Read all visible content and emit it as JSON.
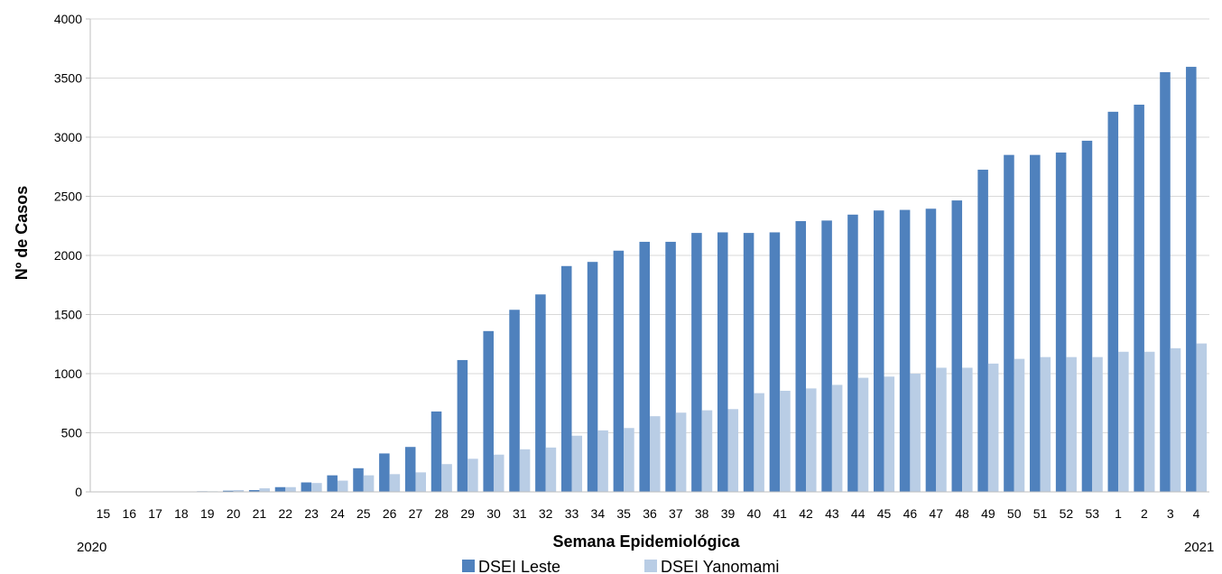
{
  "chart_data": {
    "type": "bar",
    "title": "",
    "xlabel": "Semana Epidemiológica",
    "ylabel": "Nº de Casos",
    "ylim": [
      0,
      4000
    ],
    "yticks": [
      0,
      500,
      1000,
      1500,
      2000,
      2500,
      3000,
      3500,
      4000
    ],
    "grid": true,
    "legend_position": "bottom",
    "year_labels": {
      "start": "2020",
      "end": "2021"
    },
    "categories": [
      "15",
      "16",
      "17",
      "18",
      "19",
      "20",
      "21",
      "22",
      "23",
      "24",
      "25",
      "26",
      "27",
      "28",
      "29",
      "30",
      "31",
      "32",
      "33",
      "34",
      "35",
      "36",
      "37",
      "38",
      "39",
      "40",
      "41",
      "42",
      "43",
      "44",
      "45",
      "46",
      "47",
      "48",
      "49",
      "50",
      "51",
      "52",
      "53",
      "1",
      "2",
      "3",
      "4"
    ],
    "series": [
      {
        "name": "DSEI Leste",
        "color": "#4f81bd",
        "values": [
          0,
          0,
          0,
          0,
          5,
          10,
          15,
          40,
          80,
          140,
          200,
          325,
          380,
          680,
          1115,
          1360,
          1540,
          1670,
          1910,
          1945,
          2040,
          2115,
          2115,
          2190,
          2195,
          2190,
          2195,
          2290,
          2295,
          2345,
          2380,
          2385,
          2395,
          2465,
          2725,
          2850,
          2850,
          2870,
          2970,
          3215,
          3275,
          3550,
          3595
        ]
      },
      {
        "name": "DSEI Yanomami",
        "color": "#b9cde5",
        "values": [
          0,
          0,
          0,
          0,
          5,
          15,
          30,
          40,
          75,
          95,
          140,
          150,
          165,
          235,
          280,
          315,
          360,
          375,
          475,
          520,
          540,
          640,
          670,
          690,
          700,
          835,
          855,
          875,
          905,
          965,
          975,
          1000,
          1050,
          1050,
          1085,
          1125,
          1140,
          1140,
          1140,
          1185,
          1185,
          1215,
          1255
        ]
      }
    ]
  }
}
